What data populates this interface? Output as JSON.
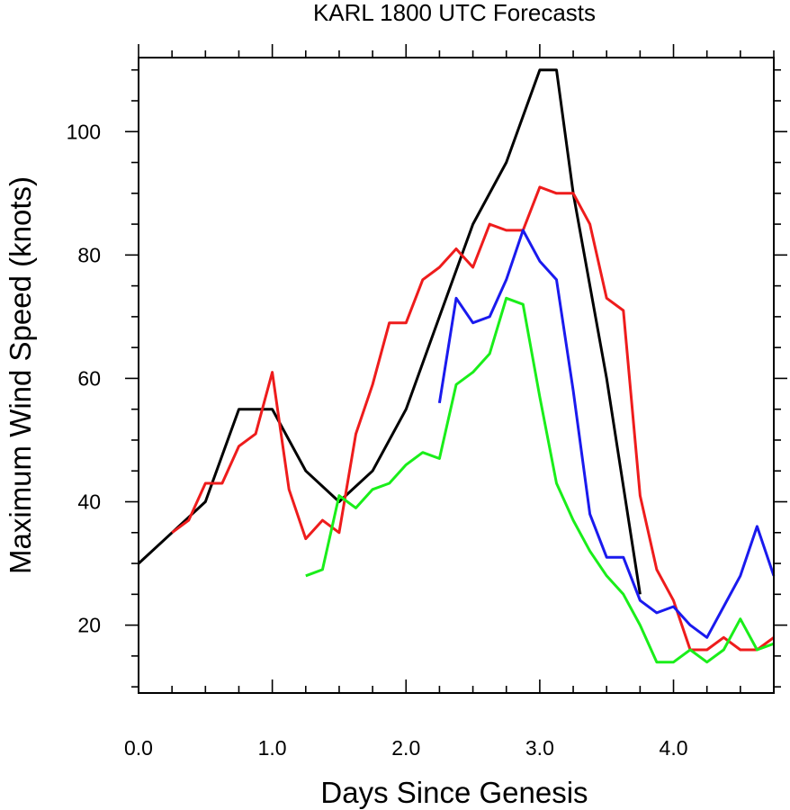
{
  "chart_data": {
    "type": "line",
    "title": "KARL 1800 UTC Forecasts",
    "xlabel": "Days Since Genesis",
    "ylabel": "Maximum Wind Speed (knots)",
    "xlim": [
      0,
      4.75
    ],
    "ylim": [
      9,
      112
    ],
    "x_ticks": [
      0,
      1,
      2,
      3,
      4
    ],
    "x_tick_labels": [
      "0.0",
      "1.0",
      "2.0",
      "3.0",
      "4.0"
    ],
    "y_ticks": [
      20,
      40,
      60,
      80,
      100
    ],
    "y_tick_labels": [
      "20",
      "40",
      "60",
      "80",
      "100"
    ],
    "grid": false,
    "legend": "none",
    "series": [
      {
        "color": "#000000",
        "x": [
          0,
          0.25,
          0.5,
          0.75,
          1.0,
          1.25,
          1.5,
          1.75,
          2.0,
          2.25,
          2.5,
          2.75,
          3.0,
          3.125,
          3.188,
          3.25,
          3.5,
          3.75
        ],
        "y": [
          30,
          35,
          40,
          55,
          55,
          45,
          40,
          45,
          55,
          70,
          85,
          95,
          110,
          110,
          100,
          90,
          60,
          25
        ]
      },
      {
        "color": "#ee1c1c",
        "x": [
          0.25,
          0.375,
          0.5,
          0.625,
          0.75,
          0.875,
          1.0,
          1.125,
          1.25,
          1.375,
          1.5,
          1.625,
          1.75,
          1.875,
          2.0,
          2.125,
          2.25,
          2.375,
          2.5,
          2.625,
          2.75,
          2.875,
          3.0,
          3.125,
          3.25,
          3.375,
          3.5,
          3.625,
          3.75,
          3.875,
          4.0,
          4.125,
          4.25,
          4.375,
          4.5,
          4.625,
          4.75
        ],
        "y": [
          35,
          37,
          43,
          43,
          49,
          51,
          61,
          42,
          34,
          37,
          35,
          51,
          59,
          69,
          69,
          76,
          78,
          81,
          78,
          85,
          84,
          84,
          91,
          90,
          90,
          85,
          73,
          71,
          41,
          29,
          24,
          16,
          16,
          18,
          16,
          16,
          18
        ]
      },
      {
        "color": "#1a1aee",
        "x": [
          2.25,
          2.375,
          2.5,
          2.625,
          2.75,
          2.875,
          3.0,
          3.125,
          3.25,
          3.375,
          3.5,
          3.625,
          3.75,
          3.875,
          4.0,
          4.125,
          4.25,
          4.375,
          4.5,
          4.625,
          4.75
        ],
        "y": [
          56,
          73,
          69,
          70,
          76,
          84,
          79,
          76,
          58,
          38,
          31,
          31,
          24,
          22,
          23,
          20,
          18,
          23,
          28,
          36,
          28
        ]
      },
      {
        "color": "#1aee1a",
        "x": [
          1.25,
          1.375,
          1.5,
          1.625,
          1.75,
          1.875,
          2.0,
          2.125,
          2.25,
          2.375,
          2.5,
          2.625,
          2.75,
          2.875,
          3.0,
          3.125,
          3.25,
          3.375,
          3.5,
          3.625,
          3.75,
          3.875,
          4.0,
          4.125,
          4.25,
          4.375,
          4.5,
          4.625,
          4.75
        ],
        "y": [
          28,
          29,
          41,
          39,
          42,
          43,
          46,
          48,
          47,
          59,
          61,
          64,
          73,
          72,
          57,
          43,
          37,
          32,
          28,
          25,
          20,
          14,
          14,
          16,
          14,
          16,
          21,
          16,
          17
        ]
      }
    ]
  }
}
